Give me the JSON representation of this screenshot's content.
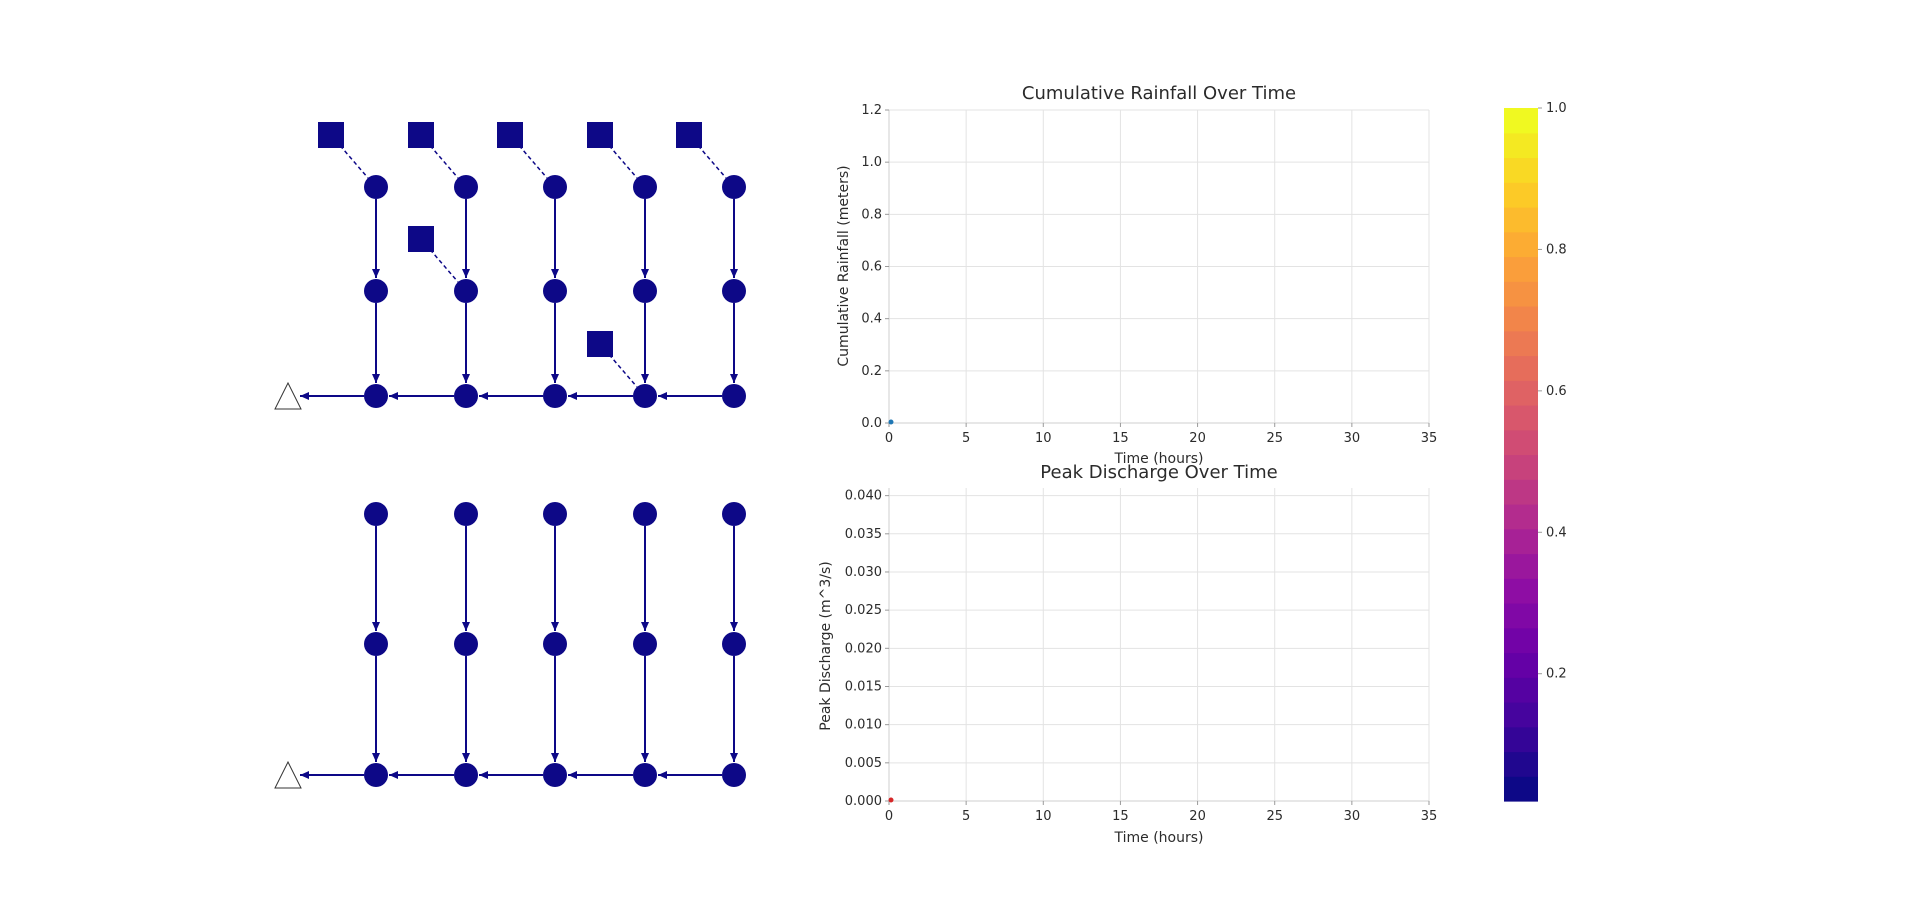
{
  "networks": [
    {
      "columns": [
        0,
        1,
        2,
        3,
        4
      ],
      "rows": [
        0,
        1,
        2
      ],
      "outlet_row": 2,
      "sources": [
        {
          "col": 0,
          "row": 0
        },
        {
          "col": 1,
          "row": 0
        },
        {
          "col": 2,
          "row": 0
        },
        {
          "col": 3,
          "row": 0
        },
        {
          "col": 4,
          "row": 0
        },
        {
          "col": 1,
          "row": 1
        },
        {
          "col": 3,
          "row": 2
        }
      ]
    },
    {
      "columns": [
        0,
        1,
        2,
        3,
        4
      ],
      "rows": [
        0,
        1,
        2
      ],
      "outlet_row": 2,
      "sources": []
    }
  ],
  "colors": {
    "node": "#0d0887",
    "rainfall_point": "#1f77b4",
    "discharge_point": "#d62728"
  },
  "chart_data": [
    {
      "type": "scatter",
      "title": "Cumulative Rainfall Over Time",
      "xlabel": "Time (hours)",
      "ylabel": "Cumulative Rainfall (meters)",
      "xlim": [
        0,
        35
      ],
      "ylim": [
        0,
        1.2
      ],
      "xticks": [
        0,
        5,
        10,
        15,
        20,
        25,
        30,
        35
      ],
      "yticks": [
        0.0,
        0.2,
        0.4,
        0.6,
        0.8,
        1.0,
        1.2
      ],
      "ytick_decimals": 1,
      "grid": true,
      "x": [
        0
      ],
      "y": [
        0
      ]
    },
    {
      "type": "scatter",
      "title": "Peak Discharge Over Time",
      "xlabel": "Time (hours)",
      "ylabel": "Peak Discharge (m^3/s)",
      "xlim": [
        0,
        35
      ],
      "ylim": [
        0,
        0.041
      ],
      "xticks": [
        0,
        5,
        10,
        15,
        20,
        25,
        30,
        35
      ],
      "yticks": [
        0.0,
        0.005,
        0.01,
        0.015,
        0.02,
        0.025,
        0.03,
        0.035,
        0.04
      ],
      "ytick_decimals": 3,
      "grid": true,
      "x": [
        0
      ],
      "y": [
        0
      ]
    },
    {
      "type": "colorbar",
      "colormap": "plasma",
      "range": [
        0.02,
        1.0
      ],
      "ticks": [
        0.2,
        0.4,
        0.6,
        0.8,
        1.0
      ],
      "tick_decimals": 1,
      "levels": 28
    }
  ]
}
